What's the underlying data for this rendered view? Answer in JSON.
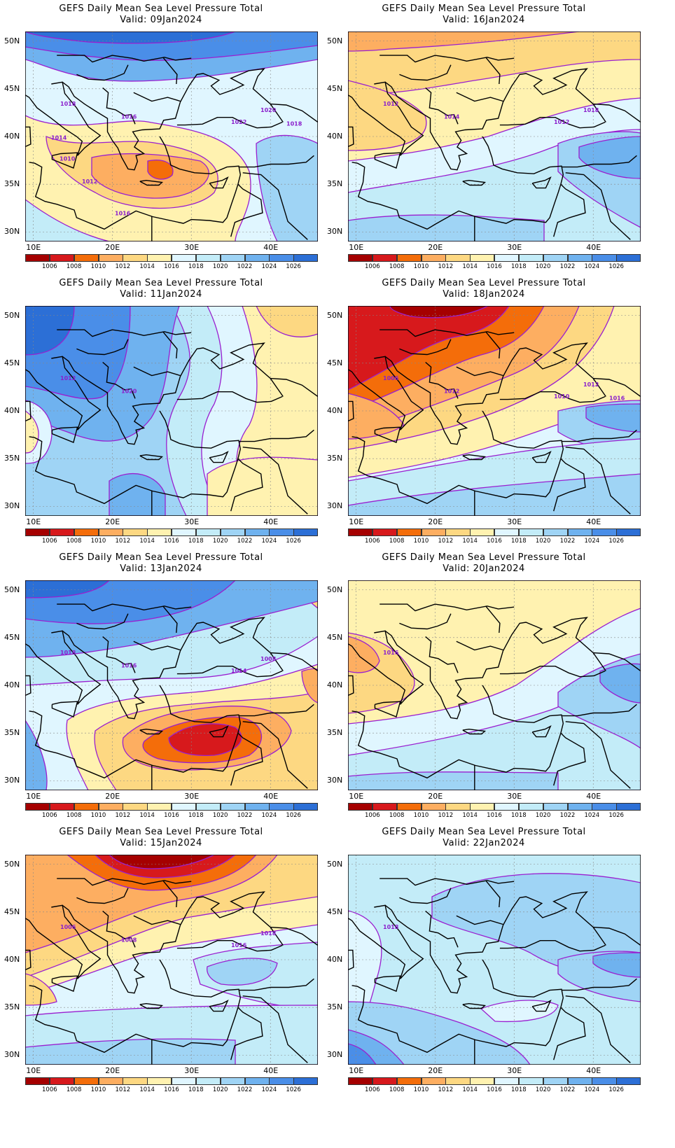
{
  "title_text": "GEFS Daily Mean Sea Level Pressure Total",
  "panels": [
    {
      "id": "p1",
      "valid": "Valid: 09Jan2024",
      "scenario": "high_north_low_greece",
      "contour_labels": [
        "1018",
        "1016",
        "1022",
        "1020",
        "1018",
        "1014",
        "1010",
        "1012",
        "1016"
      ]
    },
    {
      "id": "p2",
      "valid": "Valid: 16Jan2024",
      "scenario": "mild_west",
      "contour_labels": [
        "1012",
        "1014",
        "1012",
        "1018"
      ]
    },
    {
      "id": "p3",
      "valid": "Valid: 11Jan2024",
      "scenario": "high_west",
      "contour_labels": [
        "1012",
        "1020"
      ]
    },
    {
      "id": "p4",
      "valid": "Valid: 18Jan2024",
      "scenario": "deep_low_north",
      "contour_labels": [
        "1006",
        "1012",
        "1010",
        "1012",
        "1016"
      ]
    },
    {
      "id": "p5",
      "valid": "Valid: 13Jan2024",
      "scenario": "low_cyprus",
      "contour_labels": [
        "1018",
        "1016",
        "1014",
        "1008"
      ]
    },
    {
      "id": "p6",
      "valid": "Valid: 20Jan2024",
      "scenario": "flat_mild",
      "contour_labels": [
        "1016"
      ]
    },
    {
      "id": "p7",
      "valid": "Valid: 15Jan2024",
      "scenario": "low_north_strong",
      "contour_labels": [
        "1006",
        "1008",
        "1016",
        "1018"
      ]
    },
    {
      "id": "p8",
      "valid": "Valid: 22Jan2024",
      "scenario": "flat_high",
      "contour_labels": [
        "1018"
      ]
    }
  ],
  "axes": {
    "lat_labels": [
      "50N",
      "45N",
      "40N",
      "35N",
      "30N"
    ],
    "lat_values": [
      50,
      45,
      40,
      35,
      30
    ],
    "lon_labels": [
      "10E",
      "20E",
      "30E",
      "40E"
    ],
    "lon_values": [
      10,
      20,
      30,
      40
    ],
    "lon_range": [
      9,
      46
    ],
    "lat_range": [
      29,
      51
    ]
  },
  "colorbar": {
    "levels": [
      "1006",
      "1008",
      "1010",
      "1012",
      "1014",
      "1016",
      "1018",
      "1020",
      "1022",
      "1024",
      "1026"
    ],
    "colors": [
      "#a50000",
      "#d7191c",
      "#f46d0a",
      "#fdae61",
      "#fdd882",
      "#fff2b0",
      "#e0f6ff",
      "#c3ecf8",
      "#9fd4f5",
      "#6fb2ef",
      "#4a8ee8",
      "#2c6fd6"
    ]
  }
}
